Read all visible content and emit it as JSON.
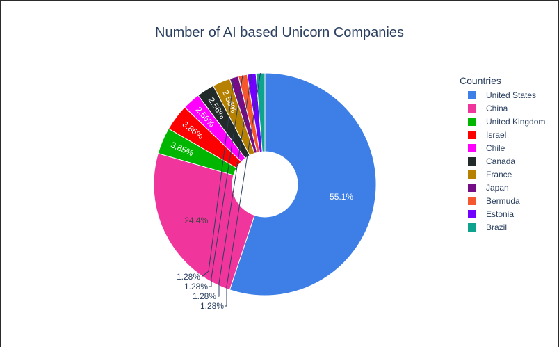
{
  "chart_data": {
    "type": "pie",
    "hole": true,
    "title": "Number of AI based Unicorn Companies",
    "legend_title": "Countries",
    "legend_position": "right",
    "direction": "clockwise",
    "start_angle_deg": 0,
    "categories": [
      "United States",
      "China",
      "United Kingdom",
      "Israel",
      "Chile",
      "Canada",
      "France",
      "Japan",
      "Bermuda",
      "Estonia",
      "Brazil"
    ],
    "values": [
      43,
      19,
      3,
      3,
      2,
      2,
      2,
      1,
      1,
      1,
      1
    ],
    "percent_labels": [
      "55.1%",
      "24.4%",
      "3.85%",
      "3.85%",
      "2.56%",
      "2.56%",
      "2.56%",
      "1.28%",
      "1.28%",
      "1.28%",
      "1.28%"
    ],
    "colors": [
      "#3d7fe6",
      "#f0359c",
      "#00b600",
      "#ff0000",
      "#ff00ff",
      "#222a2a",
      "#b68100",
      "#750d86",
      "#f5582f",
      "#7200ff",
      "#0ea38c"
    ]
  }
}
